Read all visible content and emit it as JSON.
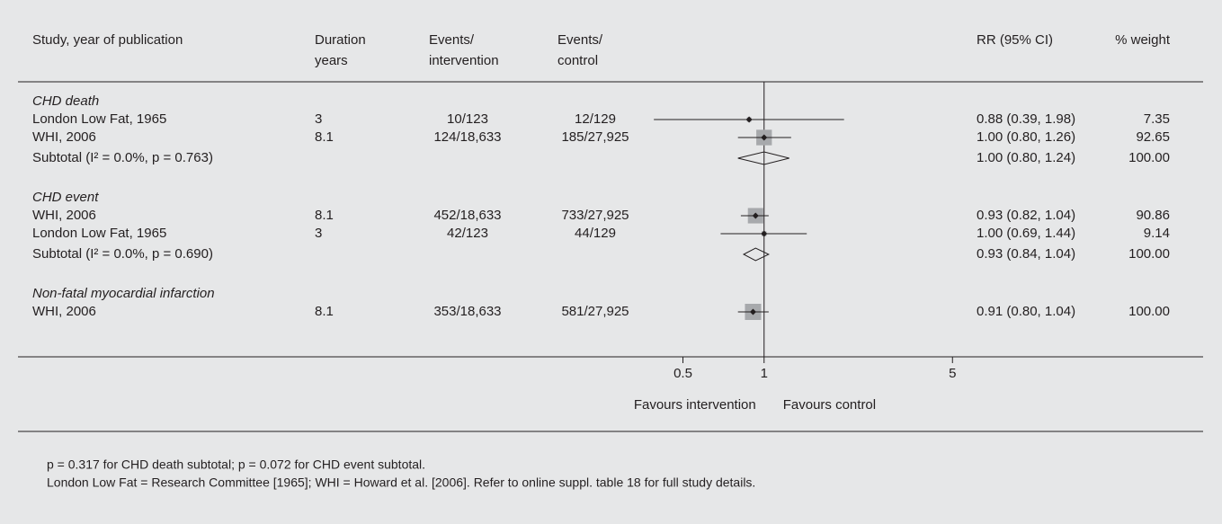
{
  "chart_data": {
    "type": "forest",
    "headers": {
      "study": [
        "Study, year of publication"
      ],
      "duration": [
        "Duration",
        "years"
      ],
      "events_intervention": [
        "Events/",
        "intervention"
      ],
      "events_control": [
        "Events/",
        "control"
      ],
      "rr": [
        "RR (95% CI)"
      ],
      "weight": [
        "% weight"
      ]
    },
    "groups": [
      {
        "name": "CHD death",
        "studies": [
          {
            "name": "London Low Fat, 1965",
            "duration": 3,
            "events_intervention": "10/123",
            "events_control": "12/129",
            "rr": 0.88,
            "ci": [
              0.39,
              1.98
            ],
            "rr_label": "0.88 (0.39, 1.98)",
            "weight": 7.35,
            "weight_label": "7.35"
          },
          {
            "name": "WHI, 2006",
            "duration": 8.1,
            "events_intervention": "124/18,633",
            "events_control": "185/27,925",
            "rr": 1.0,
            "ci": [
              0.8,
              1.26
            ],
            "rr_label": "1.00 (0.80, 1.26)",
            "weight": 92.65,
            "weight_label": "92.65"
          }
        ],
        "subtotal": {
          "label": "Subtotal (I² = 0.0%, p = 0.763)",
          "rr": 1.0,
          "ci": [
            0.8,
            1.24
          ],
          "rr_label": "1.00 (0.80, 1.24)",
          "weight": 100,
          "weight_label": "100.00"
        }
      },
      {
        "name": "CHD event",
        "studies": [
          {
            "name": "WHI, 2006",
            "duration": 8.1,
            "events_intervention": "452/18,633",
            "events_control": "733/27,925",
            "rr": 0.93,
            "ci": [
              0.82,
              1.04
            ],
            "rr_label": "0.93 (0.82, 1.04)",
            "weight": 90.86,
            "weight_label": "90.86"
          },
          {
            "name": "London Low Fat, 1965",
            "duration": 3,
            "events_intervention": "42/123",
            "events_control": "44/129",
            "rr": 1.0,
            "ci": [
              0.69,
              1.44
            ],
            "rr_label": "1.00 (0.69, 1.44)",
            "weight": 9.14,
            "weight_label": "9.14"
          }
        ],
        "subtotal": {
          "label": "Subtotal (I² = 0.0%, p = 0.690)",
          "rr": 0.93,
          "ci": [
            0.84,
            1.04
          ],
          "rr_label": "0.93 (0.84, 1.04)",
          "weight": 100,
          "weight_label": "100.00"
        }
      },
      {
        "name": "Non-fatal myocardial infarction",
        "studies": [
          {
            "name": "WHI, 2006",
            "duration": 8.1,
            "events_intervention": "353/18,633",
            "events_control": "581/27,925",
            "rr": 0.91,
            "ci": [
              0.8,
              1.04
            ],
            "rr_label": "0.91 (0.80, 1.04)",
            "weight": 100,
            "weight_label": "100.00"
          }
        ]
      }
    ],
    "xlim": [
      0.3,
      6
    ],
    "xticks": [
      0.5,
      1,
      5
    ],
    "log_x": true,
    "box_color": "#a7a9ac",
    "favours": [
      "Favours intervention",
      "Favours control"
    ],
    "footnotes": [
      "p = 0.317 for CHD death subtotal; p = 0.072 for CHD event subtotal.",
      "London Low Fat = Research Committee [1965]; WHI = Howard et al. [2006]. Refer to online suppl. table 18 for full study details."
    ]
  }
}
